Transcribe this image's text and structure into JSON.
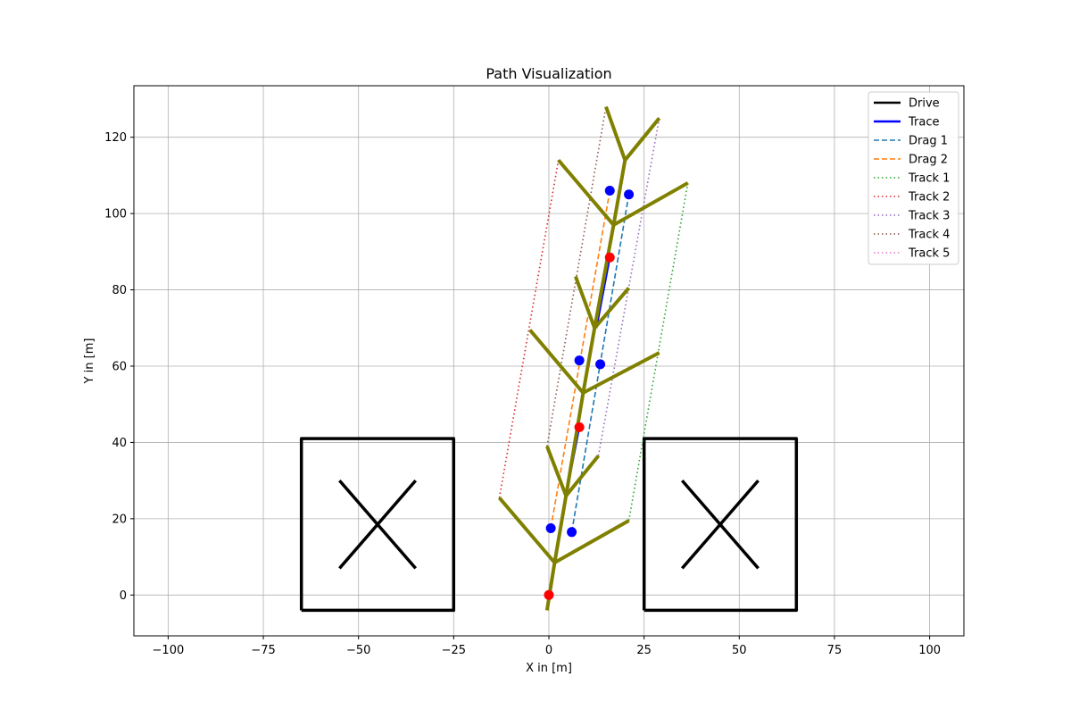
{
  "chart_data": {
    "type": "line",
    "title": "Path Visualization",
    "xlabel": "X in [m]",
    "ylabel": "Y in [m]",
    "xlim": [
      -109,
      109
    ],
    "ylim": [
      -10.7,
      133.5
    ],
    "grid": true,
    "legend_position": "top-right",
    "x_ticks": [
      -100,
      -75,
      -50,
      -25,
      0,
      25,
      50,
      75,
      100
    ],
    "x_tick_labels": [
      "−100",
      "−75",
      "−50",
      "−25",
      "0",
      "25",
      "50",
      "75",
      "100"
    ],
    "y_ticks": [
      0,
      20,
      40,
      60,
      80,
      100,
      120
    ],
    "y_tick_labels": [
      "0",
      "20",
      "40",
      "60",
      "80",
      "100",
      "120"
    ],
    "colors": {
      "drive": "#000000",
      "trace": "#0000ff",
      "drag1": "#1f77b4",
      "drag2": "#ff7f0e",
      "track1": "#2ca02c",
      "track2": "#d62728",
      "track3": "#9467bd",
      "track4": "#8c564b",
      "track5": "#e377c2",
      "tree": "#808000",
      "marker_blue": "#0000ff",
      "marker_red": "#ff0000",
      "grid": "#b0b0b0"
    },
    "legend": [
      {
        "label": "Drive",
        "key": "drive",
        "style": "solid"
      },
      {
        "label": "Trace",
        "key": "trace",
        "style": "solid"
      },
      {
        "label": "Drag 1",
        "key": "drag1",
        "style": "dashed"
      },
      {
        "label": "Drag 2",
        "key": "drag2",
        "style": "dashed"
      },
      {
        "label": "Track 1",
        "key": "track1",
        "style": "dotted"
      },
      {
        "label": "Track 2",
        "key": "track2",
        "style": "dotted"
      },
      {
        "label": "Track 3",
        "key": "track3",
        "style": "dotted"
      },
      {
        "label": "Track 4",
        "key": "track4",
        "style": "dotted"
      },
      {
        "label": "Track 5",
        "key": "track5",
        "style": "dotted"
      }
    ],
    "obstacles": [
      {
        "x": [
          -65,
          -25,
          -25,
          -65,
          -65
        ],
        "y": [
          -4,
          -4,
          41,
          41,
          -4
        ],
        "cross": [
          [
            [
              -55,
              30
            ],
            [
              -35,
              7
            ]
          ],
          [
            [
              -55,
              7
            ],
            [
              -35,
              30
            ]
          ]
        ]
      },
      {
        "x": [
          25,
          65,
          65,
          25,
          25
        ],
        "y": [
          -4,
          -4,
          41,
          41,
          -4
        ],
        "cross": [
          [
            [
              35,
              30
            ],
            [
              55,
              7
            ]
          ],
          [
            [
              35,
              7
            ],
            [
              55,
              30
            ]
          ]
        ]
      }
    ],
    "tree_lines": [
      [
        [
          -0.5,
          -4
        ],
        [
          1.5,
          8.5
        ],
        [
          4.5,
          26
        ],
        [
          9,
          53
        ],
        [
          12,
          70
        ],
        [
          17,
          97
        ],
        [
          20,
          114
        ],
        [
          15,
          128
        ]
      ],
      [
        [
          1.5,
          8.5
        ],
        [
          21,
          19.5
        ]
      ],
      [
        [
          1.5,
          8.5
        ],
        [
          -13,
          25.5
        ]
      ],
      [
        [
          4.5,
          26
        ],
        [
          13,
          36.5
        ]
      ],
      [
        [
          4.5,
          26
        ],
        [
          -0.5,
          39
        ]
      ],
      [
        [
          9,
          53
        ],
        [
          29,
          63.5
        ]
      ],
      [
        [
          9,
          53
        ],
        [
          -5,
          69.5
        ]
      ],
      [
        [
          12,
          70
        ],
        [
          21,
          80.5
        ]
      ],
      [
        [
          12,
          70
        ],
        [
          7,
          83.5
        ]
      ],
      [
        [
          17,
          97
        ],
        [
          36.5,
          108
        ]
      ],
      [
        [
          17,
          97
        ],
        [
          2.5,
          114
        ]
      ],
      [
        [
          20,
          114
        ],
        [
          29,
          125
        ]
      ]
    ],
    "series": [
      {
        "name": "Trace",
        "key": "trace",
        "style": "solid",
        "x": [
          4.5,
          8
        ],
        "y": [
          26,
          44
        ]
      },
      {
        "name": "Trace",
        "key": "trace",
        "style": "solid",
        "x": [
          12.5,
          16
        ],
        "y": [
          70,
          88.5
        ]
      },
      {
        "name": "Drag 1",
        "key": "drag1",
        "style": "dashed",
        "x": [
          6,
          21
        ],
        "y": [
          16.5,
          105
        ]
      },
      {
        "name": "Drag 2",
        "key": "drag2",
        "style": "dashed",
        "x": [
          0.5,
          16
        ],
        "y": [
          17.5,
          106
        ]
      },
      {
        "name": "Track 1",
        "key": "track1",
        "style": "dotted",
        "x": [
          21,
          36.5
        ],
        "y": [
          19.5,
          108
        ]
      },
      {
        "name": "Track 2",
        "key": "track2",
        "style": "dotted",
        "x": [
          -13,
          2.5
        ],
        "y": [
          25.5,
          114
        ]
      },
      {
        "name": "Track 3",
        "key": "track3",
        "style": "dotted",
        "x": [
          13,
          29
        ],
        "y": [
          36.5,
          125
        ]
      },
      {
        "name": "Track 4",
        "key": "track4",
        "style": "dotted",
        "x": [
          -0.5,
          15
        ],
        "y": [
          39,
          128
        ]
      }
    ],
    "markers_blue": {
      "x": [
        0.5,
        6,
        8,
        13.5,
        16,
        21
      ],
      "y": [
        17.5,
        16.5,
        61.5,
        60.5,
        106,
        105
      ]
    },
    "markers_red": {
      "x": [
        0,
        8,
        16
      ],
      "y": [
        0,
        44,
        88.5
      ]
    }
  }
}
